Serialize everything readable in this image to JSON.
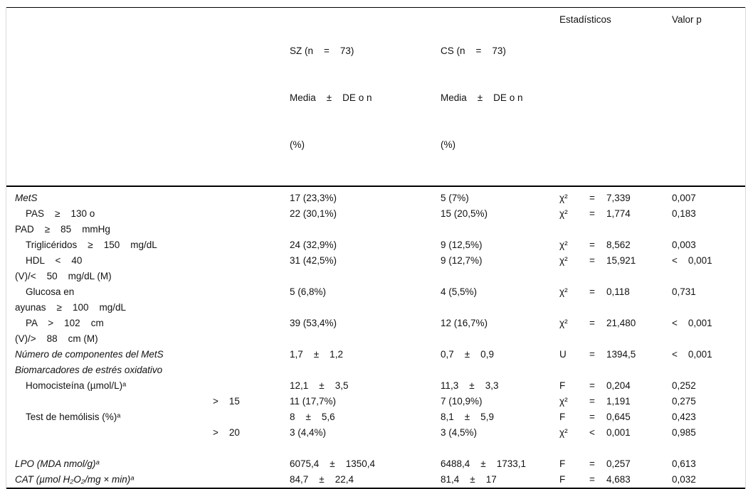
{
  "header": {
    "col_sz": {
      "line1": "SZ (n    =    73)",
      "line2": "Media    ±    DE o n",
      "line3": "(%)"
    },
    "col_cs": {
      "line1": "CS (n    =    73)",
      "line2": "Media    ±    DE o n",
      "line3": "(%)"
    },
    "col_stats": "Estadísticos",
    "col_p": "Valor p"
  },
  "rows": [
    {
      "id": "mets",
      "italic": true,
      "label_lines": [
        "MetS"
      ],
      "cutoff": "",
      "sz": "17 (23,3%)",
      "cs": "5 (7%)",
      "stat_sym": "χ²",
      "stat_op": "=",
      "stat_val": "7,339",
      "p": "0,007"
    },
    {
      "id": "pas-pad",
      "italic": false,
      "label_lines": [
        "    PAS    ≥    130 o",
        "PAD    ≥    85    mmHg"
      ],
      "cutoff": "",
      "sz": "22 (30,1%)",
      "cs": "15 (20,5%)",
      "stat_sym": "χ²",
      "stat_op": "=",
      "stat_val": "1,774",
      "p": "0,183"
    },
    {
      "id": "trigliceridos",
      "italic": false,
      "label_lines": [
        "    Triglicéridos    ≥    150    mg/dL"
      ],
      "cutoff": "",
      "sz": "24 (32,9%)",
      "cs": "9 (12,5%)",
      "stat_sym": "χ²",
      "stat_op": "=",
      "stat_val": "8,562",
      "p": "0,003"
    },
    {
      "id": "hdl",
      "italic": false,
      "label_lines": [
        "    HDL    <    40",
        "(V)/<    50    mg/dL (M)"
      ],
      "cutoff": "",
      "sz": "31 (42,5%)",
      "cs": "9 (12,7%)",
      "stat_sym": "χ²",
      "stat_op": "=",
      "stat_val": "15,921",
      "p": "<    0,001"
    },
    {
      "id": "glucosa",
      "italic": false,
      "label_lines": [
        "    Glucosa en",
        "ayunas    ≥    100    mg/dL"
      ],
      "cutoff": "",
      "sz": "5 (6,8%)",
      "cs": "4 (5,5%)",
      "stat_sym": "χ²",
      "stat_op": "=",
      "stat_val": "0,118",
      "p": "0,731"
    },
    {
      "id": "pa",
      "italic": false,
      "label_lines": [
        "    PA    >    102    cm",
        "(V)/>    88    cm (M)"
      ],
      "cutoff": "",
      "sz": "39 (53,4%)",
      "cs": "12 (16,7%)",
      "stat_sym": "χ²",
      "stat_op": "=",
      "stat_val": "21,480",
      "p": "<    0,001"
    },
    {
      "id": "numero-componentes",
      "italic": true,
      "label_lines": [
        "Número de componentes del MetS"
      ],
      "cutoff": "",
      "sz": "1,7    ±    1,2",
      "cs": "0,7    ±    0,9",
      "stat_sym": "U",
      "stat_op": "=",
      "stat_val": "1394,5",
      "p": "<    0,001"
    },
    {
      "id": "biomarcadores-heading",
      "italic": true,
      "label_lines": [
        "Biomarcadores de estrés oxidativo"
      ],
      "cutoff": "",
      "sz": "",
      "cs": "",
      "stat_sym": "",
      "stat_op": "",
      "stat_val": "",
      "p": ""
    },
    {
      "id": "homocisteina",
      "italic": false,
      "label_lines": [
        "    Homocisteína (µmol/L)ᵃ"
      ],
      "cutoff": "",
      "sz": "12,1    ±    3,5",
      "cs": "11,3    ±    3,3",
      "stat_sym": "F",
      "stat_op": "=",
      "stat_val": "0,204",
      "p": "0,252"
    },
    {
      "id": "homocisteina-gt15",
      "italic": false,
      "label_lines": [
        ""
      ],
      "cutoff": ">    15",
      "sz": "11 (17,7%)",
      "cs": "7 (10,9%)",
      "stat_sym": "χ²",
      "stat_op": "=",
      "stat_val": "1,191",
      "p": "0,275"
    },
    {
      "id": "test-hemolisis",
      "italic": false,
      "label_lines": [
        "    Test de hemólisis (%)ᵃ"
      ],
      "cutoff": "",
      "sz": "8    ±    5,6",
      "cs": "8,1    ±    5,9",
      "stat_sym": "F",
      "stat_op": "=",
      "stat_val": "0,645",
      "p": "0,423"
    },
    {
      "id": "hemolisis-gt20",
      "italic": false,
      "label_lines": [
        ""
      ],
      "cutoff": ">    20",
      "sz": "3 (4,4%)",
      "cs": "3 (4,5%)",
      "stat_sym": "χ²",
      "stat_op": "<",
      "stat_val": "0,001",
      "p": "0,985"
    },
    {
      "id": "spacer",
      "italic": false,
      "label_lines": [
        ""
      ],
      "cutoff": "",
      "sz": "",
      "cs": "",
      "stat_sym": "",
      "stat_op": "",
      "stat_val": "",
      "p": ""
    },
    {
      "id": "lpo",
      "italic": true,
      "label_lines": [
        "LPO (MDA nmol/g)ᵃ"
      ],
      "cutoff": "",
      "sz": "6075,4    ±    1350,4",
      "cs": "6488,4    ±    1733,1",
      "stat_sym": "F",
      "stat_op": "=",
      "stat_val": "0,257",
      "p": "0,613"
    },
    {
      "id": "cat",
      "italic": true,
      "label_lines": [
        "CAT (µmol H₂O₂/mg × min)ᵃ"
      ],
      "cutoff": "",
      "sz": "84,7    ±    22,4",
      "cs": "81,4    ±    17",
      "stat_sym": "F",
      "stat_op": "=",
      "stat_val": "4,683",
      "p": "0,032"
    }
  ]
}
